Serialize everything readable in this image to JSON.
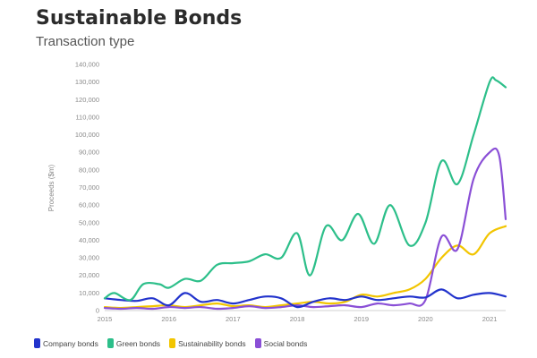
{
  "chart_data": {
    "type": "line",
    "title": "Sustainable Bonds",
    "subtitle": "Transaction type",
    "ylabel": "Proceeds ($m)",
    "xlabel": "",
    "x_ticks": [
      "2015",
      "2016",
      "2017",
      "2018",
      "2019",
      "2020",
      "2021"
    ],
    "y_ticks": [
      "0",
      "10,000",
      "20,000",
      "30,000",
      "40,000",
      "50,000",
      "60,000",
      "70,000",
      "80,000",
      "90,000",
      "100,000",
      "110,000",
      "120,000",
      "130,000",
      "140,000"
    ],
    "ylim": [
      0,
      140000
    ],
    "xlim": [
      2015.0,
      2021.25
    ],
    "grid": false,
    "legend_position": "bottom",
    "series": [
      {
        "name": "Company bonds",
        "color": "#2233cc",
        "x": [
          2015.0,
          2015.25,
          2015.5,
          2015.75,
          2016.0,
          2016.25,
          2016.5,
          2016.75,
          2017.0,
          2017.25,
          2017.5,
          2017.75,
          2018.0,
          2018.25,
          2018.5,
          2018.75,
          2019.0,
          2019.25,
          2019.5,
          2019.75,
          2020.0,
          2020.25,
          2020.5,
          2020.75,
          2021.0,
          2021.25
        ],
        "values": [
          7000,
          6000,
          5500,
          7000,
          3000,
          10000,
          5000,
          6000,
          4000,
          6000,
          8000,
          7000,
          2000,
          5000,
          7000,
          6000,
          8000,
          6000,
          7000,
          8000,
          7500,
          12000,
          7000,
          9000,
          10000,
          8000
        ]
      },
      {
        "name": "Green bonds",
        "color": "#2dbf8a",
        "x": [
          2015.0,
          2015.15,
          2015.4,
          2015.6,
          2015.85,
          2016.0,
          2016.25,
          2016.5,
          2016.75,
          2017.0,
          2017.25,
          2017.5,
          2017.75,
          2018.0,
          2018.2,
          2018.45,
          2018.7,
          2018.95,
          2019.2,
          2019.45,
          2019.75,
          2020.0,
          2020.25,
          2020.5,
          2020.75,
          2021.0,
          2021.1,
          2021.25
        ],
        "values": [
          7000,
          10000,
          6000,
          15000,
          15000,
          13000,
          18000,
          17000,
          26000,
          27000,
          28000,
          32000,
          30000,
          44000,
          20000,
          48000,
          40000,
          55000,
          38000,
          60000,
          37000,
          50000,
          85000,
          72000,
          100000,
          130000,
          131000,
          127000
        ]
      },
      {
        "name": "Sustainability bonds",
        "color": "#f2c500",
        "x": [
          2015.0,
          2015.25,
          2015.5,
          2015.75,
          2016.0,
          2016.25,
          2016.5,
          2016.75,
          2017.0,
          2017.25,
          2017.5,
          2017.75,
          2018.0,
          2018.25,
          2018.5,
          2018.75,
          2019.0,
          2019.25,
          2019.5,
          2019.75,
          2020.0,
          2020.25,
          2020.5,
          2020.75,
          2021.0,
          2021.25
        ],
        "values": [
          2000,
          1500,
          2000,
          2500,
          3000,
          2000,
          3000,
          4000,
          2500,
          3000,
          2000,
          3000,
          4000,
          5000,
          4000,
          5000,
          9000,
          8000,
          10000,
          12000,
          18000,
          30000,
          37000,
          32000,
          44000,
          48000
        ]
      },
      {
        "name": "Social bonds",
        "color": "#8a4fd6",
        "x": [
          2015.0,
          2015.25,
          2015.5,
          2015.75,
          2016.0,
          2016.25,
          2016.5,
          2016.75,
          2017.0,
          2017.25,
          2017.5,
          2017.75,
          2018.0,
          2018.25,
          2018.5,
          2018.75,
          2019.0,
          2019.25,
          2019.5,
          2019.75,
          2020.0,
          2020.25,
          2020.5,
          2020.75,
          2021.0,
          2021.15,
          2021.25
        ],
        "values": [
          1500,
          1000,
          1500,
          1000,
          2000,
          1500,
          2000,
          1000,
          1500,
          2500,
          1500,
          2000,
          3000,
          2000,
          2500,
          3000,
          2000,
          4000,
          3000,
          4000,
          6000,
          42000,
          35000,
          75000,
          90000,
          88000,
          52000
        ]
      }
    ]
  }
}
